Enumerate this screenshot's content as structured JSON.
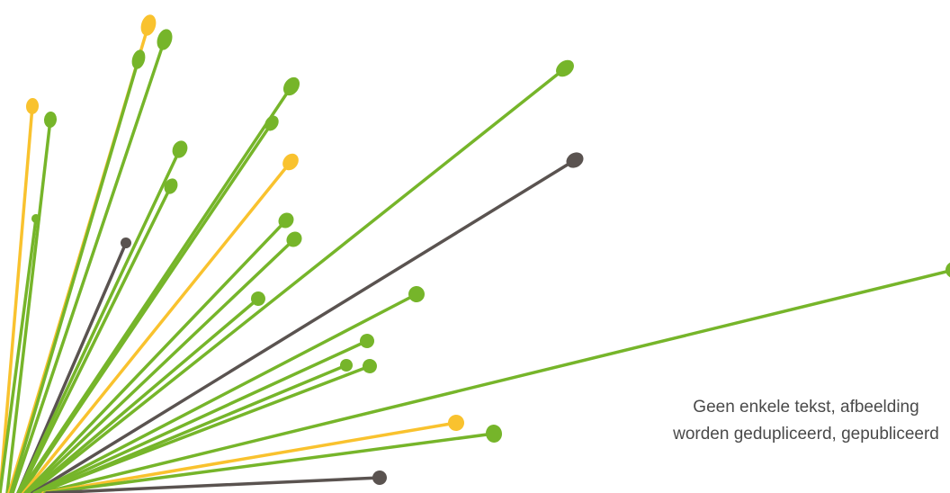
{
  "colors": {
    "green": "#76b52a",
    "yellow": "#f9c22e",
    "dark": "#5a5350",
    "text": "#4a4a4a",
    "background": "#ffffff"
  },
  "disclaimer": {
    "line1": "Geen enkele tekst, afbeelding",
    "line2": "worden gedupliceerd, gepubliceerd"
  }
}
